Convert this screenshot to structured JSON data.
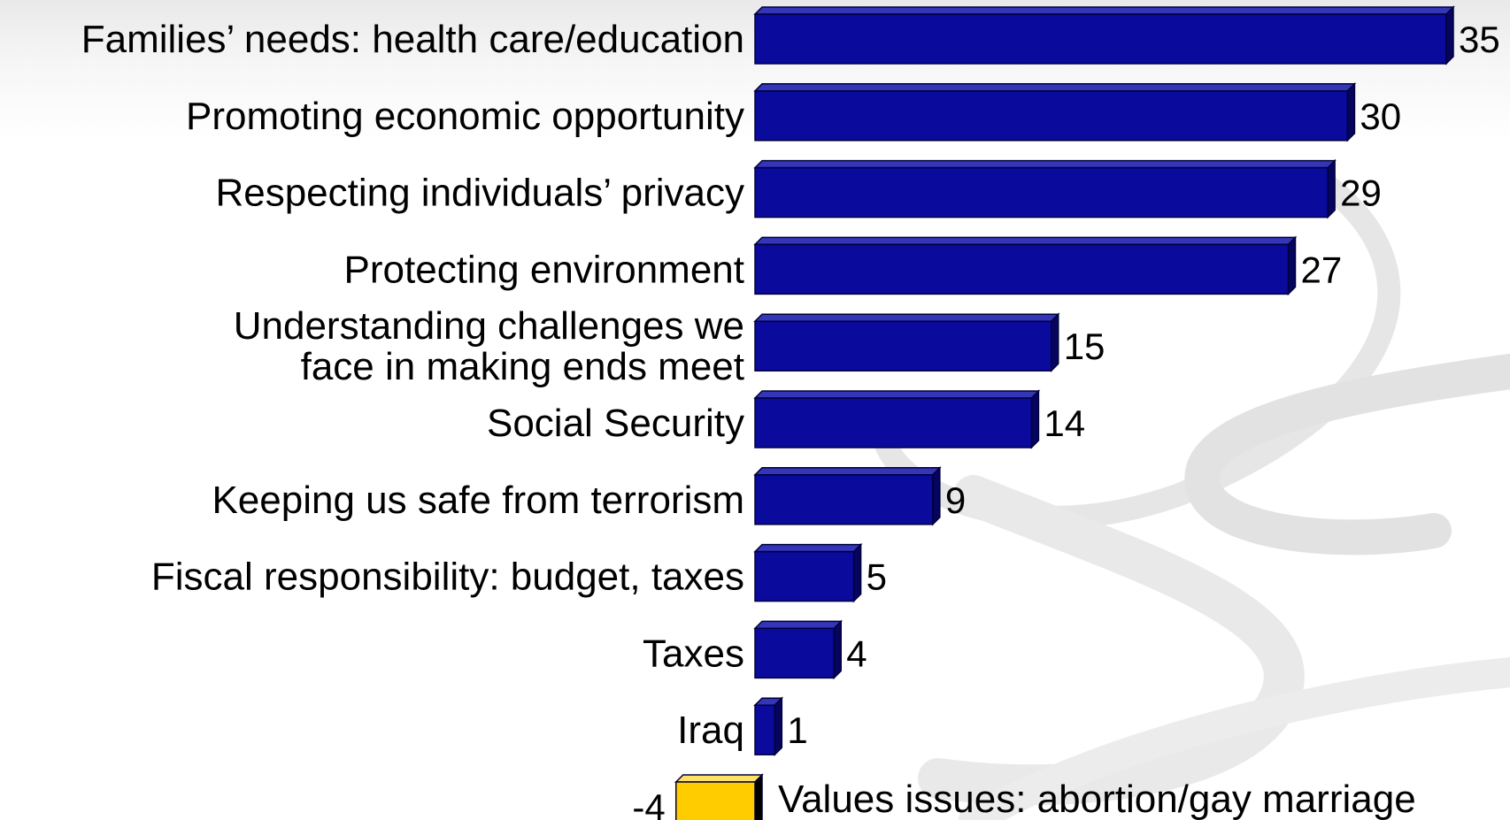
{
  "colors": {
    "positive_front": "#0a0a9c",
    "positive_top": "#3535b8",
    "positive_side": "#050560",
    "negative_front": "#ffcc00",
    "negative_top": "#ffe066",
    "negative_side": "#000000",
    "edge": "#00003a"
  },
  "chart_data": {
    "type": "bar",
    "orientation": "horizontal",
    "categories": [
      [
        "Families’ needs:  health care/education"
      ],
      [
        "Promoting economic opportunity"
      ],
      [
        "Respecting individuals’ privacy"
      ],
      [
        "Protecting environment"
      ],
      [
        "Understanding challenges we",
        "face in making ends meet"
      ],
      [
        "Social Security"
      ],
      [
        "Keeping us safe from terrorism"
      ],
      [
        "Fiscal responsibility: budget, taxes"
      ],
      [
        "Taxes"
      ],
      [
        "Iraq"
      ],
      [
        "Values issues: abortion/gay marriage"
      ]
    ],
    "values": [
      35,
      30,
      29,
      27,
      15,
      14,
      9,
      5,
      4,
      1,
      -4
    ],
    "value_labels": [
      "35",
      "30",
      "29",
      "27",
      "15",
      "14",
      "9",
      "5",
      "4",
      "1",
      "-4"
    ],
    "title": "",
    "xlabel": "",
    "ylabel": "",
    "grid": false,
    "legend": "none"
  }
}
